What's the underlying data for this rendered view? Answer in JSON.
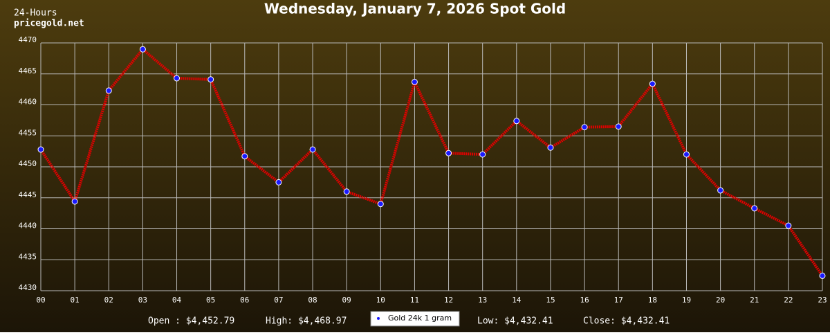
{
  "chart_data": {
    "type": "line",
    "title": "Wednesday, January 7, 2026 Spot Gold",
    "corner_label": [
      "24-Hours",
      "pricegold.net"
    ],
    "categories": [
      "00",
      "01",
      "02",
      "03",
      "04",
      "05",
      "06",
      "07",
      "08",
      "09",
      "10",
      "11",
      "12",
      "13",
      "14",
      "15",
      "16",
      "17",
      "18",
      "19",
      "20",
      "21",
      "22",
      "23"
    ],
    "series": [
      {
        "name": "Gold 24k 1 gram",
        "color": "#e00000",
        "marker_color": "#1a1aff",
        "values": [
          4452.79,
          4444.4,
          4462.3,
          4468.97,
          4464.3,
          4464.1,
          4451.7,
          4447.5,
          4452.8,
          4446.0,
          4444.0,
          4463.7,
          4452.2,
          4452.0,
          4457.4,
          4453.1,
          4456.4,
          4456.5,
          4463.4,
          4452.0,
          4446.2,
          4443.3,
          4440.5,
          4432.41
        ]
      }
    ],
    "ylim": [
      4430,
      4470
    ],
    "yticks": [
      4430,
      4435,
      4440,
      4445,
      4450,
      4455,
      4460,
      4465,
      4470
    ],
    "grid": true,
    "stats_left": [
      "Open : $4,452.79",
      "High: $4,468.97"
    ],
    "stats_right": [
      "Low: $4,432.41",
      "Close: $4,432.41"
    ]
  }
}
